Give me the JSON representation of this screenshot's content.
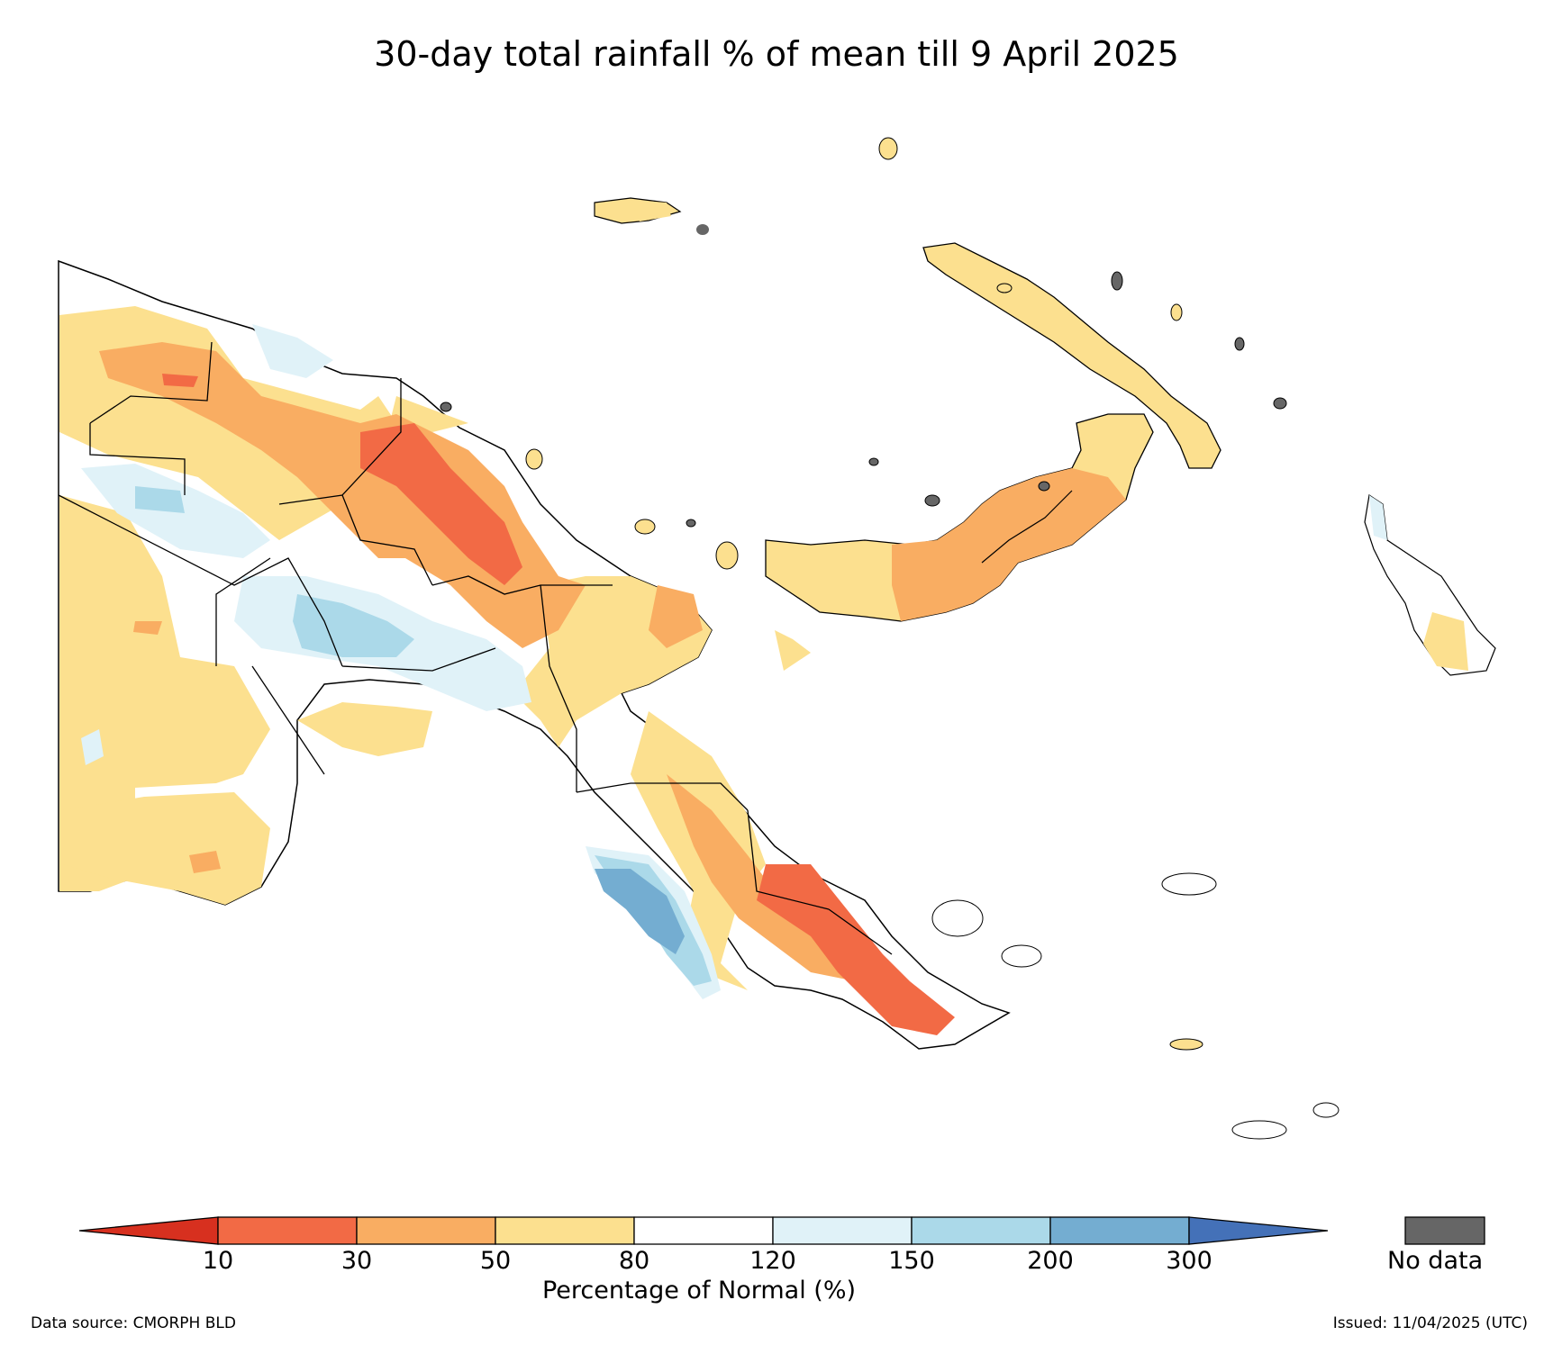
{
  "title": "30-day total rainfall % of mean till 9 April 2025",
  "colorbar": {
    "ticks": [
      "10",
      "30",
      "50",
      "80",
      "120",
      "150",
      "200",
      "300"
    ],
    "bins": [
      {
        "range": "<10",
        "color": "#d7301f"
      },
      {
        "range": "10-30",
        "color": "#f26a45"
      },
      {
        "range": "30-50",
        "color": "#f9ad62"
      },
      {
        "range": "50-80",
        "color": "#fce08f"
      },
      {
        "range": "80-120",
        "color": "#ffffff"
      },
      {
        "range": "120-150",
        "color": "#e0f2f8"
      },
      {
        "range": "150-200",
        "color": "#abd9e9"
      },
      {
        "range": "200-300",
        "color": "#74add1"
      },
      {
        "range": ">300",
        "color": "#4471b8"
      }
    ],
    "axis_label": "Percentage of Normal (%)"
  },
  "no_data": {
    "label": "No data",
    "color": "#666666"
  },
  "footer": {
    "source": "Data source: CMORPH BLD",
    "issued": "Issued: 11/04/2025 (UTC)"
  }
}
